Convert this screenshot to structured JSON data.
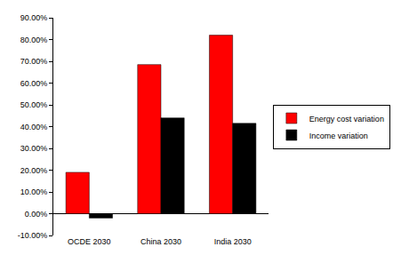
{
  "chart_data": {
    "type": "bar",
    "categories": [
      "OCDE 2030",
      "China 2030",
      "India 2030"
    ],
    "series": [
      {
        "name": "Energy cost variation",
        "color": "#ff0000",
        "values": [
          19,
          68.5,
          82
        ]
      },
      {
        "name": "Income variation",
        "color": "#000000",
        "values": [
          -2,
          44,
          41.5
        ]
      }
    ],
    "ylim": [
      -10,
      90
    ],
    "yticks": [
      {
        "value": -10,
        "label": "-10.00%"
      },
      {
        "value": 0,
        "label": "0.00%"
      },
      {
        "value": 10,
        "label": "10.00%"
      },
      {
        "value": 20,
        "label": "20.00%"
      },
      {
        "value": 30,
        "label": "30.00%"
      },
      {
        "value": 40,
        "label": "40.00%"
      },
      {
        "value": 50,
        "label": "50.00%"
      },
      {
        "value": 60,
        "label": "60.00%"
      },
      {
        "value": 70,
        "label": "70.00%"
      },
      {
        "value": 80,
        "label": "80.00%"
      },
      {
        "value": 90,
        "label": "90.00%"
      }
    ],
    "grid": false,
    "legend": "right"
  }
}
